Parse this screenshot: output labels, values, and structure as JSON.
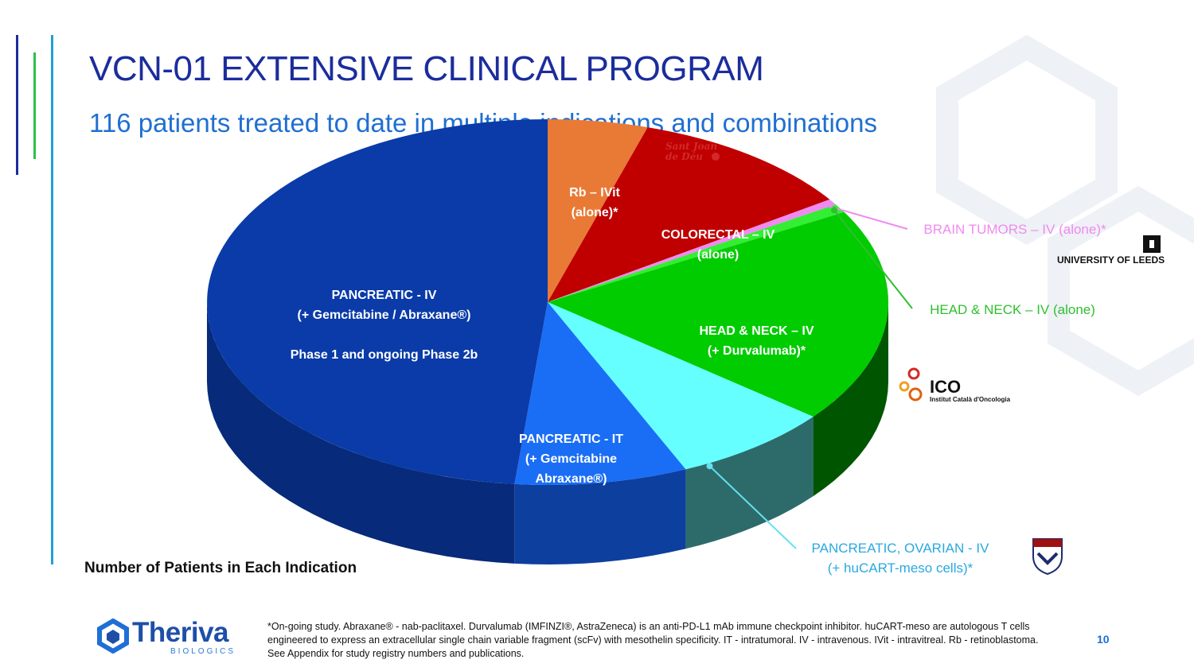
{
  "header": {
    "title": "VCN-01 EXTENSIVE CLINICAL PROGRAM",
    "subtitle": "116 patients treated to date in multiple indications and combinations"
  },
  "chart_data": {
    "type": "pie",
    "style": "3d",
    "caption": "Number of Patients in Each Indication",
    "slices": [
      {
        "key": "rb",
        "label": "Rb – IVit\n(alone)*",
        "value": 5.5,
        "color": "#e97a35",
        "side_color": "#b35a22"
      },
      {
        "key": "colorectal",
        "label": "COLORECTAL – IV\n(alone)",
        "value": 12.5,
        "color": "#c00000",
        "side_color": "#7a0000"
      },
      {
        "key": "brain",
        "label": "BRAIN TUMORS – IV (alone)*",
        "value": 0.6,
        "color": "#f08af0",
        "side_color": "#b060b0"
      },
      {
        "key": "headneck_alone",
        "label": "HEAD & NECK – IV (alone)",
        "value": 0.9,
        "color": "#33ee33",
        "side_color": "#1a9a1a"
      },
      {
        "key": "headneck_durva",
        "label": "HEAD & NECK – IV\n(+ Durvalumab)*",
        "value": 22,
        "color": "#00cc00",
        "side_color": "#005500"
      },
      {
        "key": "car_t",
        "label": "PANCREATIC, OVARIAN -  IV\n(+ huCART-meso cells)*",
        "value": 8.8,
        "color": "#66ffff",
        "side_color": "#2d6b6b"
      },
      {
        "key": "pancreatic_it",
        "label": "PANCREATIC  -  IT\n(+ Gemcitabine\nAbraxane®)",
        "value": 9.5,
        "color": "#1a6ef5",
        "side_color": "#0d3f9e"
      },
      {
        "key": "pancreatic_iv",
        "label": "PANCREATIC  - IV\n(+ Gemcitabine / Abraxane®)\n\nPhase 1 and  ongoing Phase 2b",
        "value": 56.2,
        "color": "#0a3ba8",
        "side_color": "#072a7a"
      }
    ],
    "legend": "none"
  },
  "footnote": "*On-going study. Abraxane® - nab-paclitaxel. Durvalumab (IMFINZI®, AstraZeneca) is an anti-PD-L1 mAb immune checkpoint inhibitor. huCART-meso are autologous T cells engineered to express an extracellular single chain variable fragment (scFv) with mesothelin specificity. IT - intratumoral. IV - intravenous. IVit - intravitreal. Rb - retinoblastoma. See Appendix for study registry numbers and publications.",
  "page_number": "10",
  "brand": {
    "name": "Theriva",
    "tagline": "BIOLOGICS",
    "color": "#1e4fa8"
  },
  "logos": {
    "leeds": "UNIVERSITY OF LEEDS",
    "ico": "ICO",
    "ico_sub": "Institut Català d'Oncologia",
    "sjd": "Sant Joan\nde Déu"
  },
  "colors": {
    "title": "#1b2d9c",
    "subtitle": "#1f6fd1",
    "accent_blue": "#1f6fd1",
    "accent_green": "#2fbf4a"
  }
}
